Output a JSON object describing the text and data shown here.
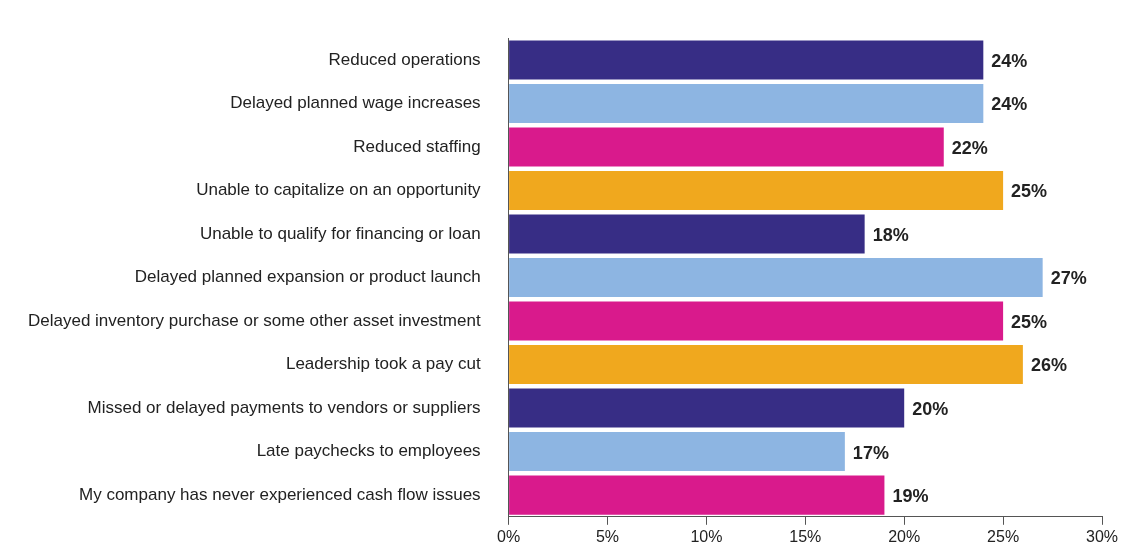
{
  "chart_data": {
    "type": "bar",
    "orientation": "horizontal",
    "categories": [
      "Reduced operations",
      "Delayed planned wage increases",
      "Reduced staffing",
      "Unable to capitalize on an opportunity",
      "Unable to qualify for financing or loan",
      "Delayed planned expansion or product launch",
      "Delayed inventory purchase or some other asset investment",
      "Leadership took a pay cut",
      "Missed or delayed payments to vendors or suppliers",
      "Late paychecks to employees",
      "My company has never experienced cash flow issues"
    ],
    "values": [
      24,
      24,
      22,
      25,
      18,
      27,
      25,
      26,
      20,
      17,
      19
    ],
    "colors": [
      "#372d85",
      "#8db5e2",
      "#d91a8c",
      "#f0a81e",
      "#372d85",
      "#8db5e2",
      "#d91a8c",
      "#f0a81e",
      "#372d85",
      "#8db5e2",
      "#d91a8c"
    ],
    "value_labels": [
      "24%",
      "24%",
      "22%",
      "25%",
      "18%",
      "27%",
      "25%",
      "26%",
      "20%",
      "17%",
      "19%"
    ],
    "xlim": [
      0,
      30
    ],
    "xticks": [
      {
        "value": 0,
        "label": "0%"
      },
      {
        "value": 5,
        "label": "5%"
      },
      {
        "value": 10,
        "label": "10%"
      },
      {
        "value": 15,
        "label": "15%"
      },
      {
        "value": 20,
        "label": "20%"
      },
      {
        "value": 25,
        "label": "25%"
      },
      {
        "value": 30,
        "label": "30%"
      }
    ]
  }
}
